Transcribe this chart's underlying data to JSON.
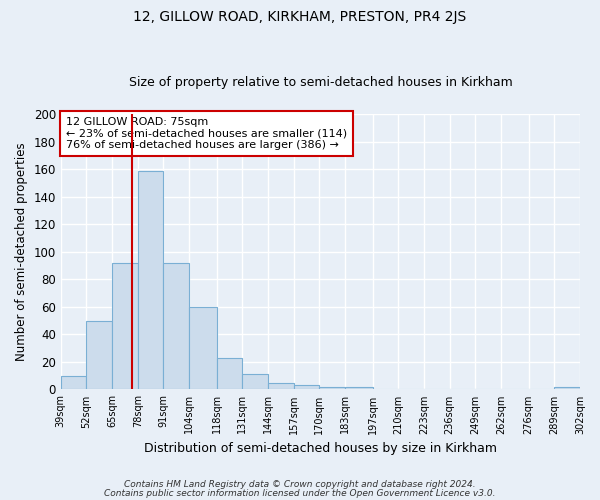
{
  "title": "12, GILLOW ROAD, KIRKHAM, PRESTON, PR4 2JS",
  "subtitle": "Size of property relative to semi-detached houses in Kirkham",
  "xlabel": "Distribution of semi-detached houses by size in Kirkham",
  "ylabel": "Number of semi-detached properties",
  "bar_values": [
    10,
    50,
    92,
    159,
    92,
    60,
    23,
    11,
    5,
    3,
    2,
    2,
    0,
    0,
    0,
    0,
    0,
    0,
    0,
    2
  ],
  "bin_edges": [
    39,
    52,
    65,
    78,
    91,
    104,
    118,
    131,
    144,
    157,
    170,
    183,
    197,
    210,
    223,
    236,
    249,
    262,
    276,
    289,
    302
  ],
  "bin_labels": [
    "39sqm",
    "52sqm",
    "65sqm",
    "78sqm",
    "91sqm",
    "104sqm",
    "118sqm",
    "131sqm",
    "144sqm",
    "157sqm",
    "170sqm",
    "183sqm",
    "197sqm",
    "210sqm",
    "223sqm",
    "236sqm",
    "249sqm",
    "262sqm",
    "276sqm",
    "289sqm",
    "302sqm"
  ],
  "property_size": 75,
  "bar_color": "#ccdcec",
  "bar_edge_color": "#7aafd4",
  "line_color": "#cc0000",
  "ylim": [
    0,
    200
  ],
  "yticks": [
    0,
    20,
    40,
    60,
    80,
    100,
    120,
    140,
    160,
    180,
    200
  ],
  "annotation_title": "12 GILLOW ROAD: 75sqm",
  "annotation_line1": "← 23% of semi-detached houses are smaller (114)",
  "annotation_line2": "76% of semi-detached houses are larger (386) →",
  "footer1": "Contains HM Land Registry data © Crown copyright and database right 2024.",
  "footer2": "Contains public sector information licensed under the Open Government Licence v3.0.",
  "background_color": "#e8eff7",
  "grid_color": "#ffffff",
  "title_fontsize": 10,
  "subtitle_fontsize": 9,
  "annotation_box_color": "#ffffff",
  "annotation_box_edge": "#cc0000"
}
